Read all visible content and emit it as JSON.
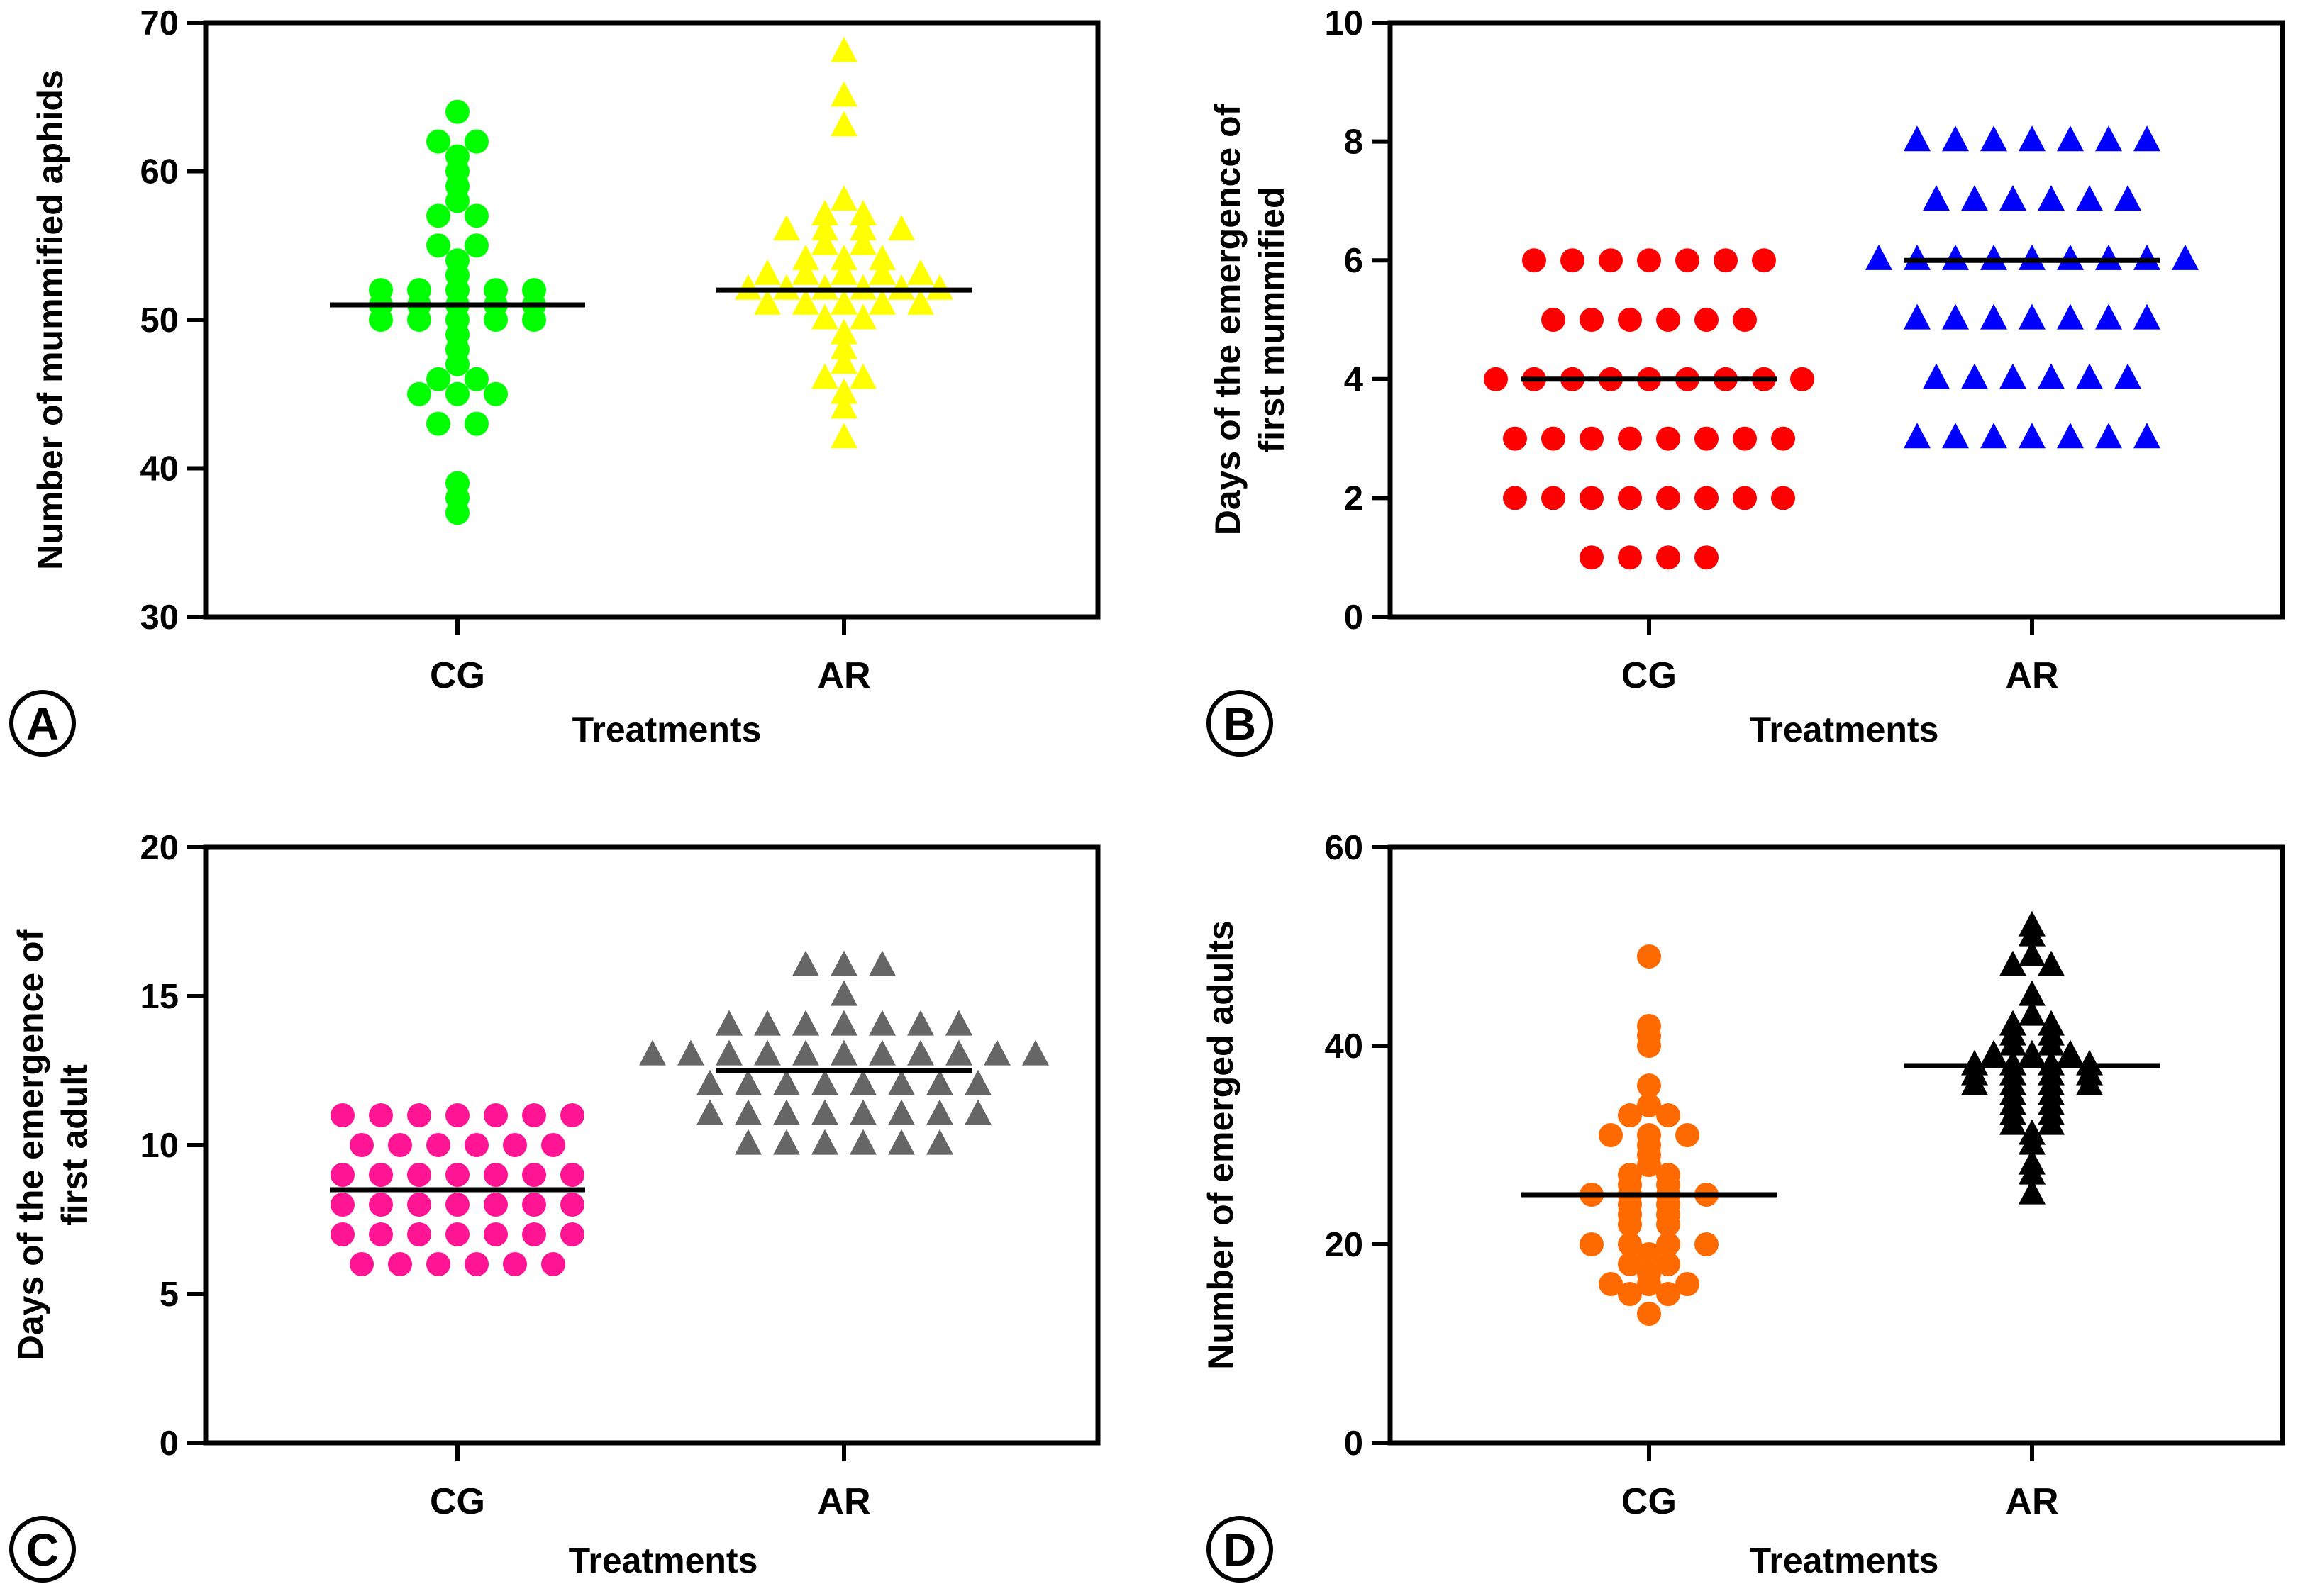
{
  "chart_data": [
    {
      "type": "scatter",
      "panel_label": "A",
      "title": "",
      "xlabel": "Treatments",
      "ylabel": [
        "Number of mummified aphids"
      ],
      "categories": [
        "CG",
        "AR"
      ],
      "ylim": [
        30,
        70
      ],
      "yticks": [
        30,
        40,
        50,
        60,
        70
      ],
      "series": [
        {
          "name": "CG",
          "marker": "circle",
          "color": "#00ff00",
          "mean": 51,
          "values": [
            64,
            62,
            62,
            61,
            60,
            59,
            58,
            57,
            57,
            55,
            55,
            54,
            53,
            52,
            52,
            52,
            52,
            52,
            51,
            51,
            51,
            51,
            51,
            50,
            50,
            50,
            50,
            50,
            49,
            48,
            47,
            46,
            46,
            45,
            45,
            45,
            43,
            43,
            39,
            38,
            37
          ]
        },
        {
          "name": "AR",
          "marker": "triangle",
          "color": "#ffff00",
          "mean": 52,
          "values": [
            68,
            65,
            63,
            58,
            57,
            57,
            56,
            56,
            56,
            56,
            55,
            55,
            54,
            54,
            54,
            53,
            53,
            53,
            53,
            53,
            52,
            52,
            52,
            52,
            52,
            52,
            51,
            51,
            51,
            51,
            51,
            50,
            50,
            49,
            48,
            47,
            46,
            46,
            45,
            44,
            42
          ]
        }
      ]
    },
    {
      "type": "scatter",
      "panel_label": "B",
      "title": "",
      "xlabel": "Treatments",
      "ylabel": [
        "Days of the emergence of",
        "first mummified"
      ],
      "categories": [
        "CG",
        "AR"
      ],
      "ylim": [
        0,
        10
      ],
      "yticks": [
        0,
        2,
        4,
        6,
        8,
        10
      ],
      "series": [
        {
          "name": "CG",
          "marker": "circle",
          "color": "#ff0000",
          "mean": 4,
          "values": [
            6,
            6,
            6,
            6,
            6,
            6,
            6,
            5,
            5,
            5,
            5,
            5,
            5,
            4,
            4,
            4,
            4,
            4,
            4,
            4,
            4,
            4,
            3,
            3,
            3,
            3,
            3,
            3,
            3,
            3,
            2,
            2,
            2,
            2,
            2,
            2,
            2,
            2,
            1,
            1,
            1,
            1
          ]
        },
        {
          "name": "AR",
          "marker": "triangle",
          "color": "#0000ff",
          "mean": 6,
          "values": [
            8,
            8,
            8,
            8,
            8,
            8,
            8,
            7,
            7,
            7,
            7,
            7,
            7,
            6,
            6,
            6,
            6,
            6,
            6,
            6,
            6,
            6,
            5,
            5,
            5,
            5,
            5,
            5,
            5,
            4,
            4,
            4,
            4,
            4,
            4,
            3,
            3,
            3,
            3,
            3,
            3,
            3
          ]
        }
      ]
    },
    {
      "type": "scatter",
      "panel_label": "C",
      "title": "",
      "xlabel": "Treatments",
      "ylabel": [
        "Days of the emergence of",
        "first adult"
      ],
      "categories": [
        "CG",
        "AR"
      ],
      "ylim": [
        0,
        20
      ],
      "yticks": [
        0,
        5,
        10,
        15,
        20
      ],
      "series": [
        {
          "name": "CG",
          "marker": "circle",
          "color": "#ff1493",
          "mean": 8.5,
          "values": [
            11,
            11,
            11,
            11,
            11,
            11,
            11,
            10,
            10,
            10,
            10,
            10,
            10,
            9,
            9,
            9,
            9,
            9,
            9,
            9,
            8,
            8,
            8,
            8,
            8,
            8,
            8,
            7,
            7,
            7,
            7,
            7,
            7,
            7,
            6,
            6,
            6,
            6,
            6,
            6
          ]
        },
        {
          "name": "AR",
          "marker": "triangle",
          "color": "#666666",
          "mean": 12.5,
          "values": [
            16,
            16,
            16,
            15,
            14,
            14,
            14,
            14,
            14,
            14,
            14,
            13,
            13,
            13,
            13,
            13,
            13,
            13,
            13,
            13,
            13,
            13,
            12,
            12,
            12,
            12,
            12,
            12,
            12,
            12,
            11,
            11,
            11,
            11,
            11,
            11,
            11,
            11,
            10,
            10,
            10,
            10,
            10,
            10
          ]
        }
      ]
    },
    {
      "type": "scatter",
      "panel_label": "D",
      "title": "",
      "xlabel": "Treatments",
      "ylabel": [
        "Number of emerged adults"
      ],
      "categories": [
        "CG",
        "AR"
      ],
      "ylim": [
        0,
        60
      ],
      "yticks": [
        0,
        20,
        40,
        60
      ],
      "series": [
        {
          "name": "CG",
          "marker": "circle",
          "color": "#ff6a00",
          "mean": 25,
          "values": [
            49,
            42,
            41,
            40,
            36,
            34,
            33,
            33,
            31,
            31,
            31,
            30,
            29,
            28,
            27,
            27,
            26,
            26,
            25,
            25,
            25,
            25,
            24,
            24,
            23,
            23,
            22,
            22,
            20,
            20,
            20,
            20,
            19,
            18,
            18,
            17,
            16,
            16,
            16,
            15,
            15,
            13
          ]
        },
        {
          "name": "AR",
          "marker": "triangle",
          "color": "#000000",
          "mean": 38,
          "values": [
            52,
            51,
            49,
            48,
            48,
            45,
            43,
            42,
            42,
            41,
            41,
            40,
            40,
            39,
            39,
            39,
            38,
            38,
            38,
            38,
            37,
            37,
            37,
            37,
            36,
            36,
            36,
            36,
            35,
            35,
            34,
            34,
            33,
            33,
            32,
            32,
            31,
            30,
            28,
            27,
            25
          ]
        }
      ]
    }
  ]
}
